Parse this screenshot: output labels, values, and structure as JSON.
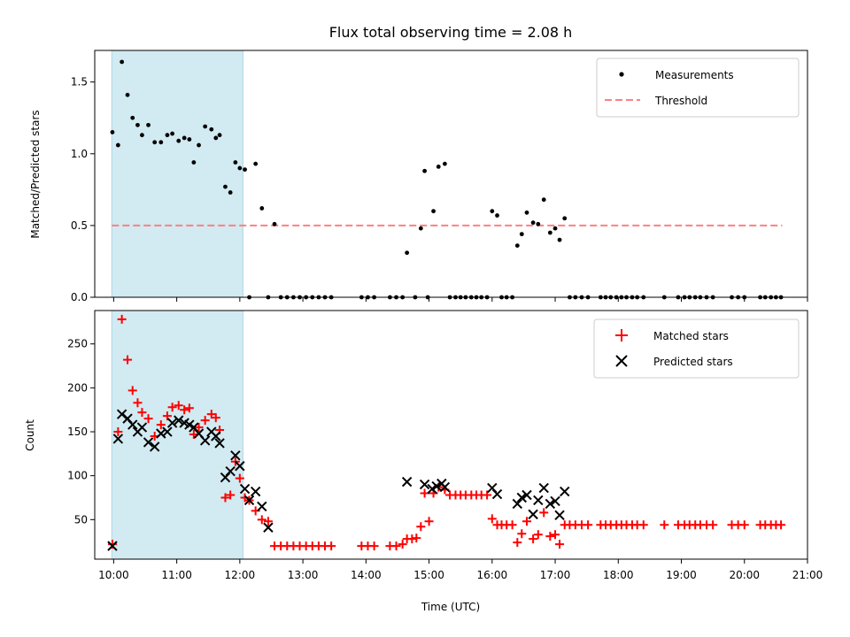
{
  "chart_data": [
    {
      "type": "scatter",
      "title": "Flux total observing time = 2.08 h",
      "xlabel": "",
      "ylabel": "Matched/Predicted stars",
      "xlim": [
        9.7,
        21.0
      ],
      "ylim": [
        0,
        1.72
      ],
      "yticks": [
        0.0,
        0.5,
        1.0,
        1.5
      ],
      "ytick_labels": [
        "0.0",
        "0.5",
        "1.0",
        "1.5"
      ],
      "xticks": [
        10,
        11,
        12,
        13,
        14,
        15,
        16,
        17,
        18,
        19,
        20,
        21
      ],
      "shaded_interval": {
        "x_start": 9.97,
        "x_end": 12.05,
        "color": "#add8e6"
      },
      "threshold": {
        "label": "Threshold",
        "value": 0.5,
        "x_start": 9.97,
        "x_end": 20.6,
        "color": "#ff7f7f"
      },
      "legend": {
        "position": "top-right",
        "entries": [
          "Measurements",
          "Threshold"
        ]
      },
      "series": [
        {
          "name": "Measurements",
          "marker": "dot",
          "color": "#000000",
          "x": [
            9.98,
            10.07,
            10.13,
            10.22,
            10.3,
            10.38,
            10.45,
            10.55,
            10.65,
            10.75,
            10.85,
            10.93,
            11.03,
            11.12,
            11.2,
            11.27,
            11.35,
            11.45,
            11.55,
            11.62,
            11.68,
            11.77,
            11.85,
            11.93,
            12.0,
            12.08,
            12.15,
            12.25,
            12.35,
            12.45,
            12.55,
            12.65,
            12.75,
            12.85,
            12.95,
            13.05,
            13.15,
            13.25,
            13.35,
            13.45,
            13.93,
            14.03,
            14.13,
            14.38,
            14.48,
            14.58,
            14.65,
            14.78,
            14.87,
            14.93,
            14.98,
            15.07,
            15.15,
            15.25,
            15.33,
            15.42,
            15.5,
            15.58,
            15.67,
            15.75,
            15.83,
            15.92,
            16.0,
            16.08,
            16.15,
            16.23,
            16.32,
            16.4,
            16.47,
            16.55,
            16.65,
            16.73,
            16.82,
            16.92,
            17.0,
            17.07,
            17.15,
            17.23,
            17.32,
            17.42,
            17.52,
            17.72,
            17.8,
            17.88,
            17.97,
            18.05,
            18.13,
            18.22,
            18.3,
            18.4,
            18.73,
            18.95,
            19.05,
            19.13,
            19.22,
            19.3,
            19.4,
            19.5,
            19.8,
            19.9,
            20.0,
            20.25,
            20.33,
            20.42,
            20.5,
            20.58
          ],
          "y": [
            1.15,
            1.06,
            1.64,
            1.41,
            1.25,
            1.2,
            1.13,
            1.2,
            1.08,
            1.08,
            1.13,
            1.14,
            1.09,
            1.11,
            1.1,
            0.94,
            1.06,
            1.19,
            1.17,
            1.11,
            1.13,
            0.77,
            0.73,
            0.94,
            0.9,
            0.89,
            0.0,
            0.93,
            0.62,
            0.0,
            0.51,
            0.0,
            0.0,
            0.0,
            0.0,
            0.0,
            0.0,
            0.0,
            0.0,
            0.0,
            0.0,
            0.0,
            0.0,
            0.0,
            0.0,
            0.0,
            0.31,
            0.0,
            0.48,
            0.88,
            0.0,
            0.6,
            0.91,
            0.93,
            0.0,
            0.0,
            0.0,
            0.0,
            0.0,
            0.0,
            0.0,
            0.0,
            0.6,
            0.57,
            0.0,
            0.0,
            0.0,
            0.36,
            0.44,
            0.59,
            0.52,
            0.51,
            0.68,
            0.45,
            0.48,
            0.4,
            0.55,
            0.0,
            0.0,
            0.0,
            0.0,
            0.0,
            0.0,
            0.0,
            0.0,
            0.0,
            0.0,
            0.0,
            0.0,
            0.0,
            0.0,
            0.0,
            0.0,
            0.0,
            0.0,
            0.0,
            0.0,
            0.0,
            0.0,
            0.0,
            0.0,
            0.0,
            0.0,
            0.0,
            0.0,
            0.0
          ]
        }
      ]
    },
    {
      "type": "scatter",
      "title": "",
      "xlabel": "Time (UTC)",
      "ylabel": "Count",
      "xlim": [
        9.7,
        21.0
      ],
      "ylim": [
        5,
        288
      ],
      "yticks": [
        50,
        100,
        150,
        200,
        250
      ],
      "ytick_labels": [
        "50",
        "100",
        "150",
        "200",
        "250"
      ],
      "xticks": [
        10,
        11,
        12,
        13,
        14,
        15,
        16,
        17,
        18,
        19,
        20,
        21
      ],
      "xtick_labels": [
        "10:00",
        "11:00",
        "12:00",
        "13:00",
        "14:00",
        "15:00",
        "16:00",
        "17:00",
        "18:00",
        "19:00",
        "20:00",
        "21:00"
      ],
      "shaded_interval": {
        "x_start": 9.97,
        "x_end": 12.05,
        "color": "#add8e6"
      },
      "legend": {
        "position": "top-right",
        "entries": [
          "Matched stars",
          "Predicted stars"
        ]
      },
      "series": [
        {
          "name": "Matched stars",
          "marker": "plus",
          "color": "#ff0000",
          "x": [
            9.98,
            10.07,
            10.13,
            10.22,
            10.3,
            10.38,
            10.45,
            10.55,
            10.65,
            10.75,
            10.85,
            10.93,
            11.03,
            11.12,
            11.2,
            11.27,
            11.35,
            11.45,
            11.55,
            11.62,
            11.68,
            11.77,
            11.85,
            11.93,
            12.0,
            12.08,
            12.15,
            12.25,
            12.35,
            12.45,
            12.55,
            12.65,
            12.75,
            12.85,
            12.95,
            13.05,
            13.15,
            13.25,
            13.35,
            13.45,
            13.93,
            14.03,
            14.13,
            14.38,
            14.48,
            14.58,
            14.65,
            14.73,
            14.8,
            14.87,
            14.93,
            15.0,
            15.07,
            15.15,
            15.25,
            15.33,
            15.42,
            15.5,
            15.58,
            15.67,
            15.75,
            15.83,
            15.92,
            16.0,
            16.08,
            16.15,
            16.23,
            16.32,
            16.4,
            16.47,
            16.55,
            16.65,
            16.73,
            16.82,
            16.92,
            17.0,
            17.07,
            17.15,
            17.23,
            17.32,
            17.42,
            17.52,
            17.72,
            17.8,
            17.88,
            17.97,
            18.05,
            18.13,
            18.22,
            18.3,
            18.4,
            18.73,
            18.95,
            19.05,
            19.13,
            19.22,
            19.3,
            19.4,
            19.5,
            19.8,
            19.9,
            20.0,
            20.25,
            20.33,
            20.42,
            20.5,
            20.58
          ],
          "y": [
            22,
            150,
            278,
            232,
            197,
            183,
            172,
            165,
            145,
            158,
            168,
            178,
            180,
            175,
            177,
            147,
            155,
            163,
            170,
            166,
            152,
            75,
            78,
            116,
            97,
            75,
            72,
            60,
            50,
            48,
            20,
            20,
            20,
            20,
            20,
            20,
            20,
            20,
            20,
            20,
            20,
            20,
            20,
            20,
            20,
            22,
            28,
            28,
            29,
            42,
            80,
            48,
            80,
            87,
            84,
            78,
            78,
            78,
            78,
            78,
            78,
            78,
            78,
            51,
            44,
            44,
            44,
            44,
            24,
            34,
            48,
            28,
            33,
            58,
            31,
            33,
            22,
            44,
            44,
            44,
            44,
            44,
            44,
            44,
            44,
            44,
            44,
            44,
            44,
            44,
            44,
            44,
            44,
            44,
            44,
            44,
            44,
            44,
            44,
            44,
            44,
            44,
            44,
            44,
            44,
            44,
            44
          ]
        },
        {
          "name": "Predicted stars",
          "marker": "x",
          "color": "#000000",
          "x": [
            9.98,
            10.07,
            10.13,
            10.22,
            10.3,
            10.38,
            10.45,
            10.55,
            10.65,
            10.75,
            10.85,
            10.93,
            11.03,
            11.12,
            11.2,
            11.27,
            11.35,
            11.45,
            11.55,
            11.62,
            11.68,
            11.77,
            11.85,
            11.93,
            12.0,
            12.08,
            12.15,
            12.25,
            12.35,
            12.45,
            14.65,
            14.93,
            15.05,
            15.12,
            15.2,
            15.25,
            16.0,
            16.08,
            16.4,
            16.47,
            16.55,
            16.65,
            16.73,
            16.82,
            16.92,
            17.0,
            17.07,
            17.15
          ],
          "y": [
            20,
            142,
            170,
            165,
            158,
            150,
            155,
            138,
            133,
            148,
            150,
            160,
            163,
            160,
            158,
            155,
            148,
            140,
            150,
            145,
            137,
            98,
            105,
            123,
            111,
            85,
            72,
            82,
            65,
            41,
            93,
            90,
            85,
            88,
            91,
            87,
            86,
            79,
            68,
            75,
            78,
            56,
            72,
            86,
            68,
            71,
            55,
            82
          ]
        }
      ]
    }
  ]
}
